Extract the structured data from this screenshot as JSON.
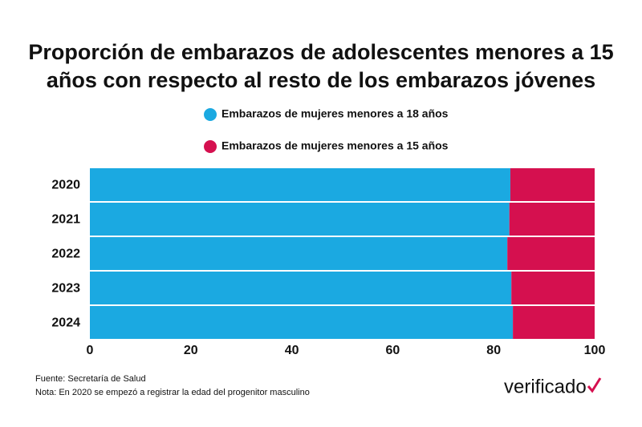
{
  "chart_data": {
    "type": "stacked-barh",
    "title": "Proporción de embarazos de adolescentes menores a 15 años con respecto al resto de los embarazos jóvenes",
    "categories": [
      "2020",
      "2021",
      "2022",
      "2023",
      "2024"
    ],
    "series": [
      {
        "name": "Embarazos de mujeres menores a 18 años",
        "color": "#1ba9e1",
        "values": [
          83.3,
          83.1,
          82.7,
          83.5,
          83.8
        ]
      },
      {
        "name": "Embarazos de mujeres menores a 15 años",
        "color": "#d5104f",
        "values": [
          16.7,
          16.9,
          17.3,
          16.5,
          16.2
        ]
      }
    ],
    "xlim": [
      0,
      100
    ],
    "xticks": [
      0,
      20,
      40,
      60,
      80,
      100
    ],
    "source": "Fuente: Secretaría de Salud",
    "note": "Nota: En 2020 se empezó a registrar la edad del progenitor masculino",
    "logo": "verificado"
  }
}
